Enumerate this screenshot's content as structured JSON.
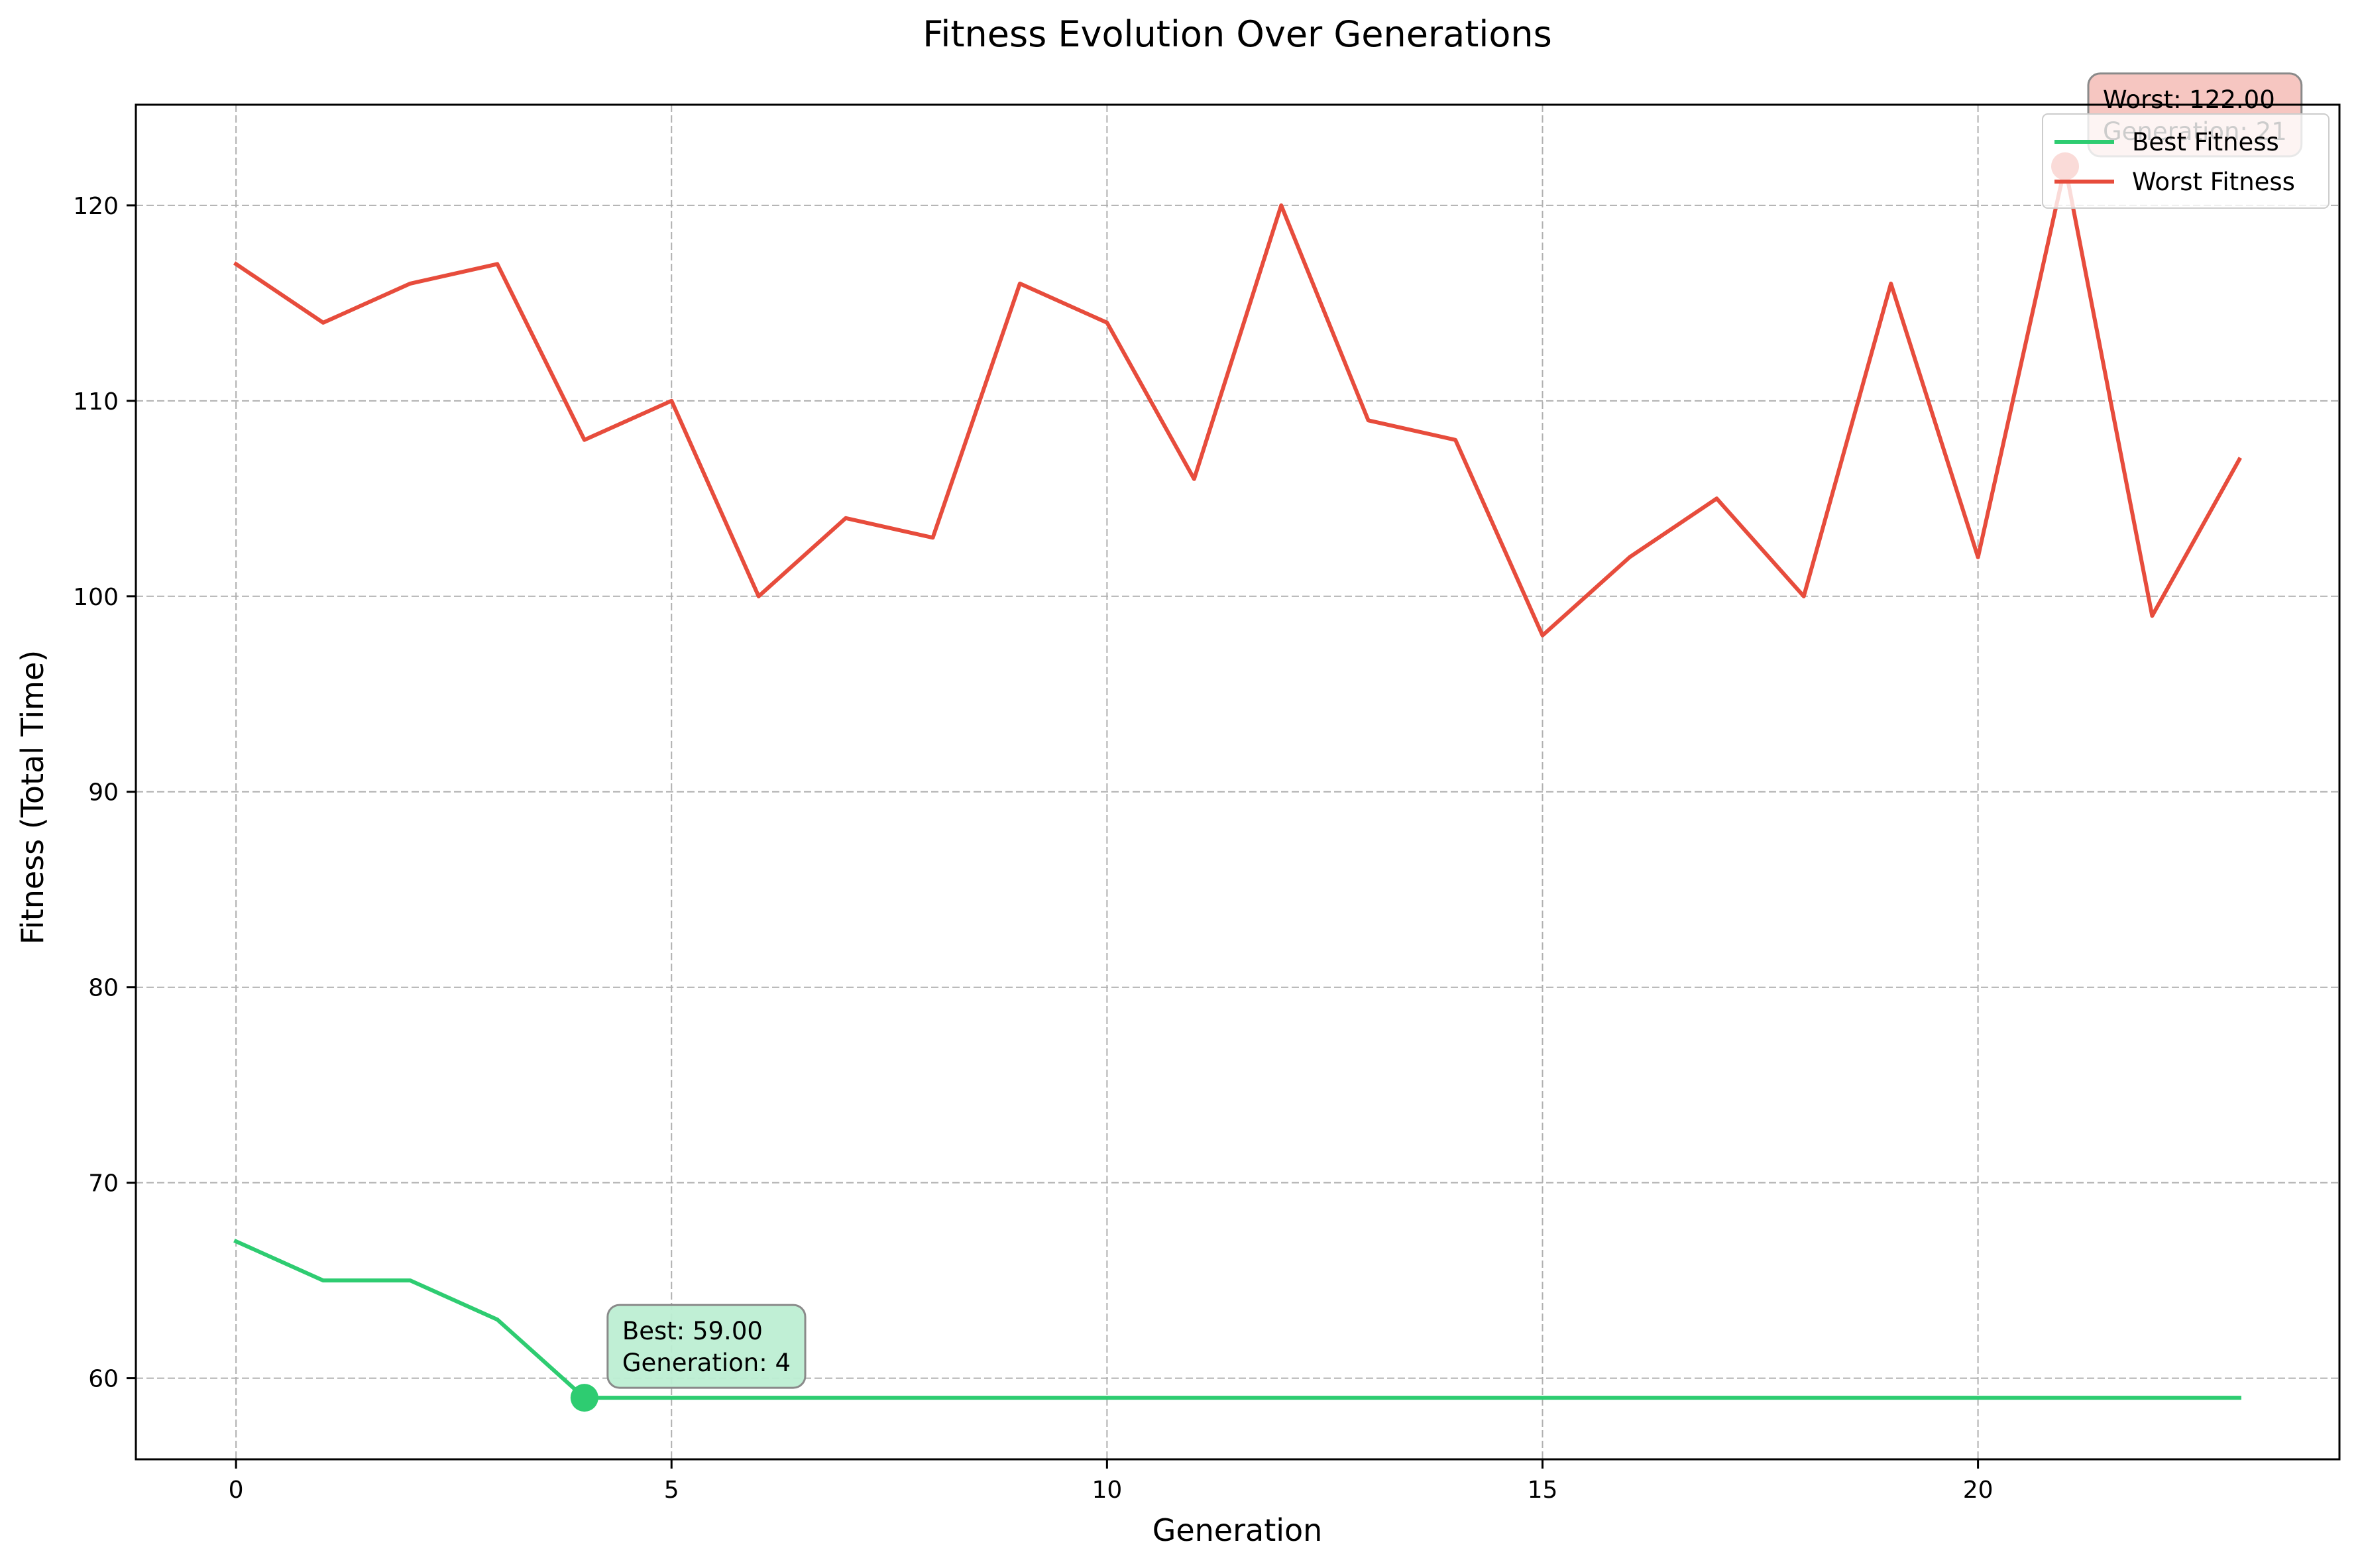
{
  "chart_data": {
    "type": "line",
    "title": "Fitness Evolution Over Generations",
    "xlabel": "Generation",
    "ylabel": "Fitness (Total Time)",
    "xlim": [
      -1.15,
      24.15
    ],
    "ylim": [
      55.85,
      125.15
    ],
    "xticks": [
      0,
      5,
      10,
      15,
      20
    ],
    "yticks": [
      60,
      70,
      80,
      90,
      100,
      110,
      120
    ],
    "grid": true,
    "legend_position": "top-right",
    "x": [
      0,
      1,
      2,
      3,
      4,
      5,
      6,
      7,
      8,
      9,
      10,
      11,
      12,
      13,
      14,
      15,
      16,
      17,
      18,
      19,
      20,
      21,
      22,
      23
    ],
    "series": [
      {
        "name": "Best Fitness",
        "color": "#2ecc71",
        "values": [
          67,
          65,
          65,
          63,
          59,
          59,
          59,
          59,
          59,
          59,
          59,
          59,
          59,
          59,
          59,
          59,
          59,
          59,
          59,
          59,
          59,
          59,
          59,
          59
        ]
      },
      {
        "name": "Worst Fitness",
        "color": "#e74c3c",
        "values": [
          117,
          114,
          116,
          117,
          108,
          110,
          100,
          104,
          103,
          116,
          114,
          106,
          120,
          109,
          108,
          98,
          102,
          105,
          100,
          116,
          102,
          122,
          99,
          107
        ]
      }
    ],
    "annotations": [
      {
        "series": "Best Fitness",
        "x": 4,
        "y": 59,
        "lines": [
          "Best: 59.00",
          "Generation: 4"
        ],
        "color": "#2ecc71",
        "box_color": "#bdeed3"
      },
      {
        "series": "Worst Fitness",
        "x": 21,
        "y": 122,
        "lines": [
          "Worst: 122.00",
          "Generation: 21"
        ],
        "color": "#e74c3c",
        "box_color": "#f5c3be"
      }
    ]
  }
}
